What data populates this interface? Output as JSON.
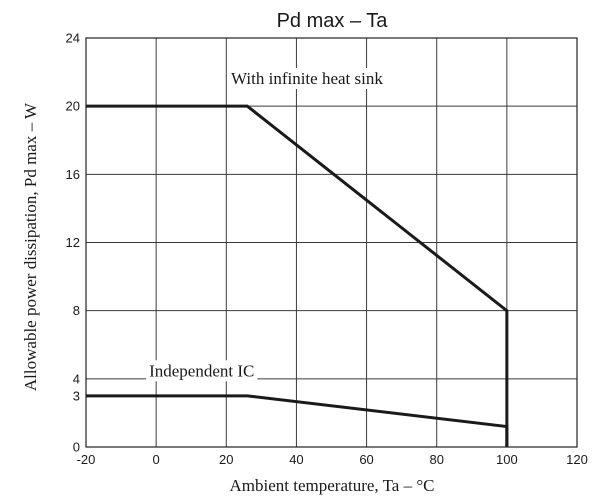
{
  "chart_data": {
    "type": "line",
    "title": "Pd max – Ta",
    "xlabel": "Ambient temperature, Ta – °C",
    "ylabel": "Allowable power dissipation, Pd max – W",
    "xlim": [
      -20,
      120
    ],
    "ylim": [
      0,
      24
    ],
    "x_ticks": [
      "-20",
      "0",
      "20",
      "40",
      "60",
      "80",
      "100",
      "120"
    ],
    "y_ticks": [
      {
        "value": 0,
        "label": "0"
      },
      {
        "value": 3,
        "label": "3"
      },
      {
        "value": 4,
        "label": "4"
      },
      {
        "value": 8,
        "label": "8"
      },
      {
        "value": 12,
        "label": "12"
      },
      {
        "value": 16,
        "label": "16"
      },
      {
        "value": 20,
        "label": "20"
      },
      {
        "value": 24,
        "label": "24"
      }
    ],
    "grid": true,
    "series": [
      {
        "name": "With infinite heat sink",
        "points": [
          [
            -20,
            20
          ],
          [
            26,
            20
          ],
          [
            100,
            8
          ],
          [
            100,
            0
          ]
        ]
      },
      {
        "name": "Independent IC",
        "points": [
          [
            -20,
            3
          ],
          [
            26,
            3
          ],
          [
            100,
            1.2
          ],
          [
            100,
            0
          ]
        ]
      }
    ],
    "annotations": [
      {
        "text": "With infinite heat sink",
        "x": 43,
        "y": 21.3,
        "anchor": "middle"
      },
      {
        "text": "Independent IC",
        "x": 13,
        "y": 4.15,
        "anchor": "middle"
      }
    ]
  }
}
